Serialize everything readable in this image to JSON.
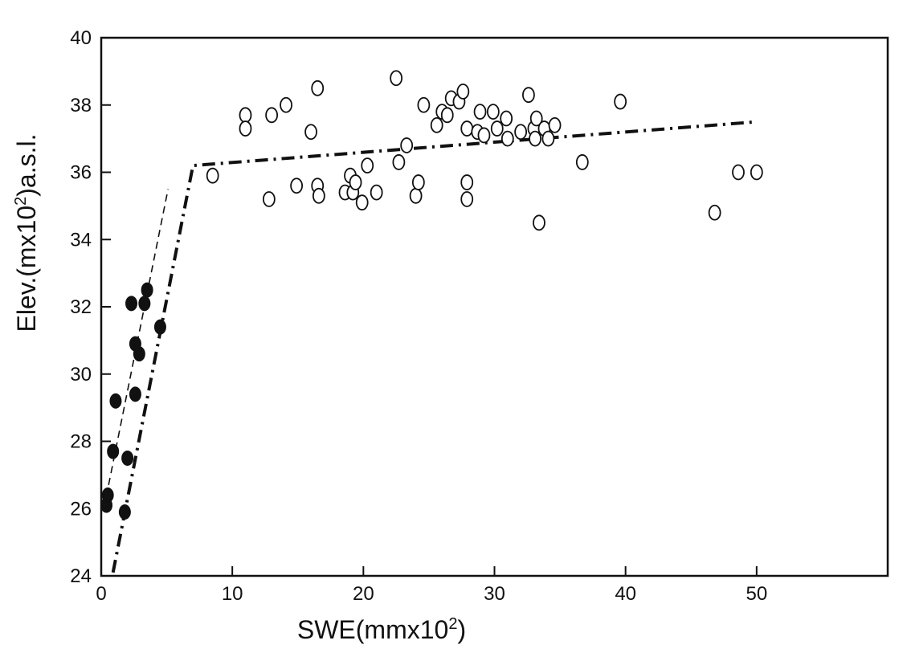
{
  "chart_data": {
    "type": "scatter",
    "title": "",
    "xlabel": {
      "main": "SWE(mmx10",
      "sup": "2",
      "close": ")"
    },
    "ylabel": {
      "main": "Elev.(mx10",
      "sup": "2",
      "close": ")a.s.l."
    },
    "xlim": [
      0,
      60
    ],
    "ylim": [
      24,
      40
    ],
    "x_ticks": [
      0,
      10,
      20,
      30,
      40,
      50
    ],
    "x_tick_labels": [
      "0",
      "10",
      "20",
      "30",
      "40",
      "50"
    ],
    "y_ticks": [
      24,
      26,
      28,
      30,
      32,
      34,
      36,
      38,
      40
    ],
    "y_tick_labels": [
      "24",
      "26",
      "28",
      "30",
      "32",
      "34",
      "36",
      "38",
      "40"
    ],
    "grid": false,
    "series": [
      {
        "name": "filled",
        "marker": "filled-ellipse",
        "points": [
          [
            0.4,
            26.1
          ],
          [
            0.5,
            26.4
          ],
          [
            0.9,
            27.7
          ],
          [
            1.1,
            29.2
          ],
          [
            1.8,
            25.9
          ],
          [
            2.0,
            27.5
          ],
          [
            2.3,
            32.1
          ],
          [
            2.6,
            29.4
          ],
          [
            2.6,
            30.9
          ],
          [
            2.9,
            30.6
          ],
          [
            3.3,
            32.1
          ],
          [
            3.5,
            32.5
          ],
          [
            4.5,
            31.4
          ]
        ]
      },
      {
        "name": "open",
        "marker": "open-ellipse",
        "points": [
          [
            8.5,
            35.9
          ],
          [
            11.0,
            37.7
          ],
          [
            11.0,
            37.3
          ],
          [
            12.8,
            35.2
          ],
          [
            13.0,
            37.7
          ],
          [
            14.1,
            38.0
          ],
          [
            14.9,
            35.6
          ],
          [
            16.0,
            37.2
          ],
          [
            16.5,
            38.5
          ],
          [
            16.5,
            35.6
          ],
          [
            16.6,
            35.3
          ],
          [
            18.6,
            35.4
          ],
          [
            19.0,
            35.9
          ],
          [
            19.2,
            35.4
          ],
          [
            19.4,
            35.7
          ],
          [
            19.9,
            35.1
          ],
          [
            20.3,
            36.2
          ],
          [
            21.0,
            35.4
          ],
          [
            22.5,
            38.8
          ],
          [
            22.7,
            36.3
          ],
          [
            23.3,
            36.8
          ],
          [
            24.0,
            35.3
          ],
          [
            24.2,
            35.7
          ],
          [
            24.6,
            38.0
          ],
          [
            25.6,
            37.4
          ],
          [
            26.0,
            37.8
          ],
          [
            26.4,
            37.7
          ],
          [
            26.7,
            38.2
          ],
          [
            27.3,
            38.1
          ],
          [
            27.6,
            38.4
          ],
          [
            27.9,
            37.3
          ],
          [
            27.9,
            35.7
          ],
          [
            27.9,
            35.2
          ],
          [
            28.7,
            37.2
          ],
          [
            28.9,
            37.8
          ],
          [
            29.2,
            37.1
          ],
          [
            29.9,
            37.8
          ],
          [
            30.2,
            37.3
          ],
          [
            30.9,
            37.6
          ],
          [
            31.0,
            37.0
          ],
          [
            32.0,
            37.2
          ],
          [
            32.6,
            38.3
          ],
          [
            33.0,
            37.3
          ],
          [
            33.1,
            37.0
          ],
          [
            33.2,
            37.6
          ],
          [
            33.4,
            34.5
          ],
          [
            33.8,
            37.3
          ],
          [
            34.1,
            37.0
          ],
          [
            34.6,
            37.4
          ],
          [
            36.7,
            36.3
          ],
          [
            39.6,
            38.1
          ],
          [
            46.8,
            34.8
          ],
          [
            48.6,
            36.0
          ],
          [
            50.0,
            36.0
          ]
        ]
      }
    ],
    "lines": [
      {
        "name": "dash-dot-fit",
        "style": "dash-dot",
        "points": [
          [
            0.9,
            24.1
          ],
          [
            7.0,
            36.2
          ],
          [
            50.0,
            37.5
          ]
        ]
      },
      {
        "name": "dashed-fit",
        "style": "dashed",
        "points": [
          [
            0.2,
            26.0
          ],
          [
            5.1,
            35.5
          ]
        ]
      }
    ]
  }
}
